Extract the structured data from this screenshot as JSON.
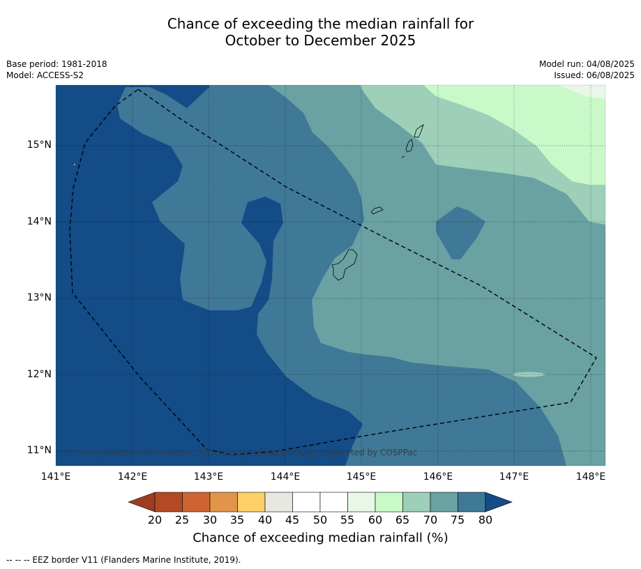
{
  "title_line1": "Chance of exceeding the median rainfall for",
  "title_line2": "October to December 2025",
  "base_period": "Base period: 1981-2018",
  "model": "Model: ACCESS-S2",
  "model_run": "Model run: 04/08/2025",
  "issued": "Issued: 06/08/2025",
  "copyright": "© Commonwealth of Australia 2025, Bureau of Meteorology, supported by COSPPac",
  "footnote": "--  --  -- EEZ border V11 (Flanders Marine Institute, 2019).",
  "lat_labels": [
    "15°N",
    "14°N",
    "13°N",
    "12°N",
    "11°N"
  ],
  "lon_labels": [
    "141°E",
    "142°E",
    "143°E",
    "144°E",
    "145°E",
    "146°E",
    "147°E",
    "148°E"
  ],
  "colorbar": {
    "label": "Chance of exceeding median rainfall (%)",
    "ticks": [
      "20",
      "25",
      "30",
      "35",
      "40",
      "45",
      "50",
      "55",
      "60",
      "65",
      "70",
      "75",
      "80"
    ],
    "colors": [
      "#b44a25",
      "#cf6433",
      "#e2954a",
      "#fdd068",
      "#e8e8e3",
      "#ffffff",
      "#ffffff",
      "#e8f7e8",
      "#c9f9c9",
      "#9dcfb9",
      "#6aa1a2",
      "#407897"
    ],
    "under_color": "#9e3d22",
    "over_color": "#134c87"
  },
  "map_colors": {
    "c80": "#134c87",
    "c75": "#407897",
    "c70": "#6aa1a2",
    "c65": "#9dcfb9",
    "c60": "#c9f9c9",
    "c55": "#e8f7e8"
  }
}
